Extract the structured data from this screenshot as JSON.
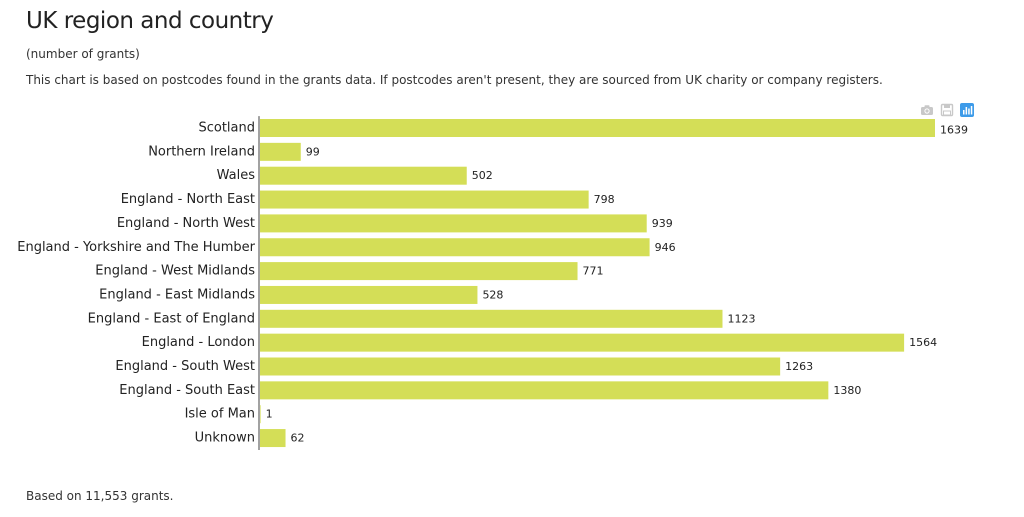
{
  "header": {
    "title": "UK region and country",
    "subtitle": "(number of grants)",
    "description": "This chart is based on postcodes found in the grants data. If postcodes aren't present, they are sourced from UK charity or company registers."
  },
  "footer": {
    "note": "Based on 11,553 grants."
  },
  "modebar": {
    "icons": [
      "camera-icon",
      "save-icon",
      "plotly-logo-icon"
    ]
  },
  "colors": {
    "bar": "#d4de57",
    "axis": "#444444",
    "modebar": "#c8c8c8",
    "modebar_active": "#3d9be9"
  },
  "chart_data": {
    "type": "bar",
    "orientation": "horizontal",
    "categories": [
      "Scotland",
      "Northern Ireland",
      "Wales",
      "England - North East",
      "England - North West",
      "England - Yorkshire and The Humber",
      "England - West Midlands",
      "England - East Midlands",
      "England - East of England",
      "England - London",
      "England - South West",
      "England - South East",
      "Isle of Man",
      "Unknown"
    ],
    "values": [
      1639,
      99,
      502,
      798,
      939,
      946,
      771,
      528,
      1123,
      1564,
      1263,
      1380,
      1,
      62
    ],
    "title": "UK region and country",
    "xlim": [
      0,
      1639
    ],
    "grid": false,
    "legend": "none"
  }
}
